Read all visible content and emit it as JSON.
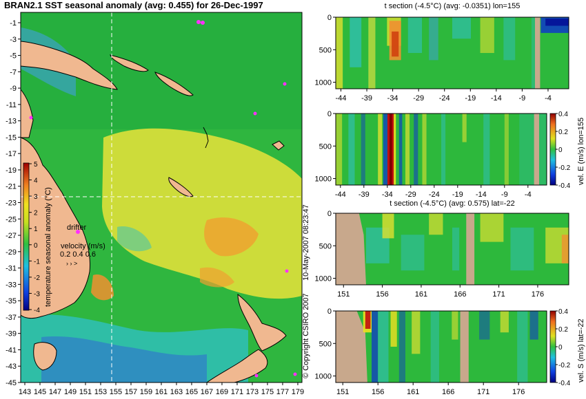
{
  "main_title": "BRAN2.1 SST seasonal anomaly (avg: 0.455) for 26-Dec-1997",
  "copyright": "© Copyright CSIRO 2007",
  "stamp": "10-May-2007 08:23:47",
  "colors": {
    "green": "#27b43c",
    "yellow": "#e8e020",
    "orange": "#f0a020",
    "red": "#c02010",
    "cyan": "#20c8c8",
    "blue": "#1040c0",
    "land": "#f0b890",
    "dark_green": "#10a040"
  },
  "chart_data": [
    {
      "id": "map",
      "type": "heatmap",
      "title": "BRAN2.1 SST seasonal anomaly (avg: 0.455) for 26-Dec-1997",
      "x_ticks": [
        "143",
        "145",
        "147",
        "149",
        "151",
        "153",
        "155",
        "157",
        "159",
        "161",
        "163",
        "165",
        "167",
        "169",
        "171",
        "173",
        "175",
        "177",
        "179"
      ],
      "y_ticks": [
        "-1",
        "-3",
        "-5",
        "-7",
        "-9",
        "-11",
        "-13",
        "-15",
        "-17",
        "-19",
        "-21",
        "-23",
        "-25",
        "-27",
        "-29",
        "-31",
        "-33",
        "-35",
        "-37",
        "-39",
        "-41",
        "-43",
        "-45"
      ],
      "xlim": [
        143,
        180
      ],
      "ylim": [
        -45,
        0
      ],
      "crosshair": {
        "lon": 155,
        "lat": -22
      },
      "colorbar": {
        "label": "temperature seasonal anomaly (°C)",
        "ticks": [
          "5",
          "4",
          "3",
          "2",
          "1",
          "0",
          "-1",
          "-2",
          "-3",
          "-4"
        ],
        "range": [
          -4,
          5
        ]
      },
      "annotations": {
        "drifter": "drifter",
        "velocity_label": "velocity (m/s)",
        "velocity_scale": "0.2 0.4 0.6"
      }
    },
    {
      "id": "t-section-lon",
      "type": "heatmap",
      "title": "t section (-4.5°C) (avg: -0.0351) lon=155",
      "x_ticks": [
        "-44",
        "-39",
        "-34",
        "-29",
        "-24",
        "-19",
        "-14",
        "-9",
        "-4"
      ],
      "y_ticks": [
        "0",
        "500",
        "1000"
      ],
      "xlim": [
        -45,
        0
      ],
      "ylim": [
        1100,
        0
      ]
    },
    {
      "id": "vel-e-section",
      "type": "heatmap",
      "x_ticks": [
        "-44",
        "-39",
        "-34",
        "-29",
        "-24",
        "-19",
        "-14",
        "-9",
        "-4"
      ],
      "y_ticks": [
        "0",
        "500",
        "1000"
      ],
      "xlim": [
        -45,
        0
      ],
      "ylim": [
        1100,
        0
      ],
      "colorbar": {
        "label": "vel. E (m/s) lon=155",
        "ticks": [
          "0.4",
          "0.2",
          "0",
          "-0.2",
          "-0.4"
        ],
        "range": [
          -0.4,
          0.4
        ]
      }
    },
    {
      "id": "t-section-lat",
      "type": "heatmap",
      "title": "t section (-4.5°C) (avg: 0.575) lat=-22",
      "x_ticks": [
        "151",
        "156",
        "161",
        "166",
        "171",
        "176"
      ],
      "y_ticks": [
        "0",
        "500",
        "1000"
      ],
      "xlim": [
        150,
        180
      ],
      "ylim": [
        1100,
        0
      ]
    },
    {
      "id": "vel-s-section",
      "type": "heatmap",
      "x_ticks": [
        "151",
        "156",
        "161",
        "166",
        "171",
        "176"
      ],
      "y_ticks": [
        "0",
        "500",
        "1000"
      ],
      "xlim": [
        150,
        180
      ],
      "ylim": [
        1100,
        0
      ],
      "colorbar": {
        "label": "vel. S (m/s) lat=-22",
        "ticks": [
          "0.4",
          "0.2",
          "0",
          "-0.2",
          "-0.4"
        ],
        "range": [
          -0.4,
          0.4
        ]
      }
    }
  ]
}
